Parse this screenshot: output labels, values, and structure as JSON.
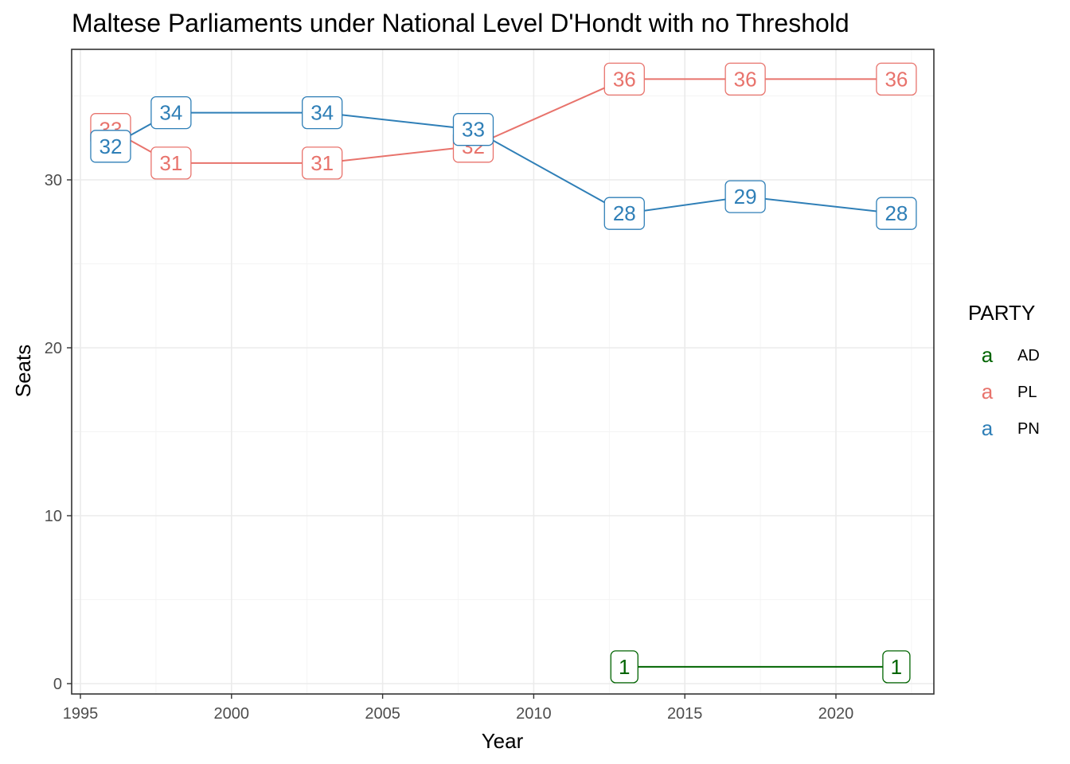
{
  "chart_data": {
    "type": "line",
    "title": "Maltese Parliaments under National Level D'Hondt with no Threshold",
    "xlabel": "Year",
    "ylabel": "Seats",
    "xlim": [
      1995,
      2023
    ],
    "ylim": [
      0,
      37
    ],
    "x_ticks": [
      1995,
      2000,
      2005,
      2010,
      2015,
      2020
    ],
    "y_ticks": [
      0,
      10,
      20,
      30
    ],
    "grid": true,
    "legend": {
      "title": "PARTY",
      "placement": "right",
      "key_glyph": "a"
    },
    "series": [
      {
        "name": "AD",
        "color": "#006400",
        "points": [
          {
            "x": 2013,
            "y": 1
          },
          {
            "x": 2022,
            "y": 1
          }
        ]
      },
      {
        "name": "PL",
        "color": "#e8736c",
        "points": [
          {
            "x": 1996,
            "y": 33
          },
          {
            "x": 1998,
            "y": 31
          },
          {
            "x": 2003,
            "y": 31
          },
          {
            "x": 2008,
            "y": 32
          },
          {
            "x": 2013,
            "y": 36
          },
          {
            "x": 2017,
            "y": 36
          },
          {
            "x": 2022,
            "y": 36
          }
        ]
      },
      {
        "name": "PN",
        "color": "#2f7fb7",
        "points": [
          {
            "x": 1996,
            "y": 32
          },
          {
            "x": 1998,
            "y": 34
          },
          {
            "x": 2003,
            "y": 34
          },
          {
            "x": 2008,
            "y": 33
          },
          {
            "x": 2013,
            "y": 28
          },
          {
            "x": 2017,
            "y": 29
          },
          {
            "x": 2022,
            "y": 28
          }
        ]
      }
    ]
  }
}
